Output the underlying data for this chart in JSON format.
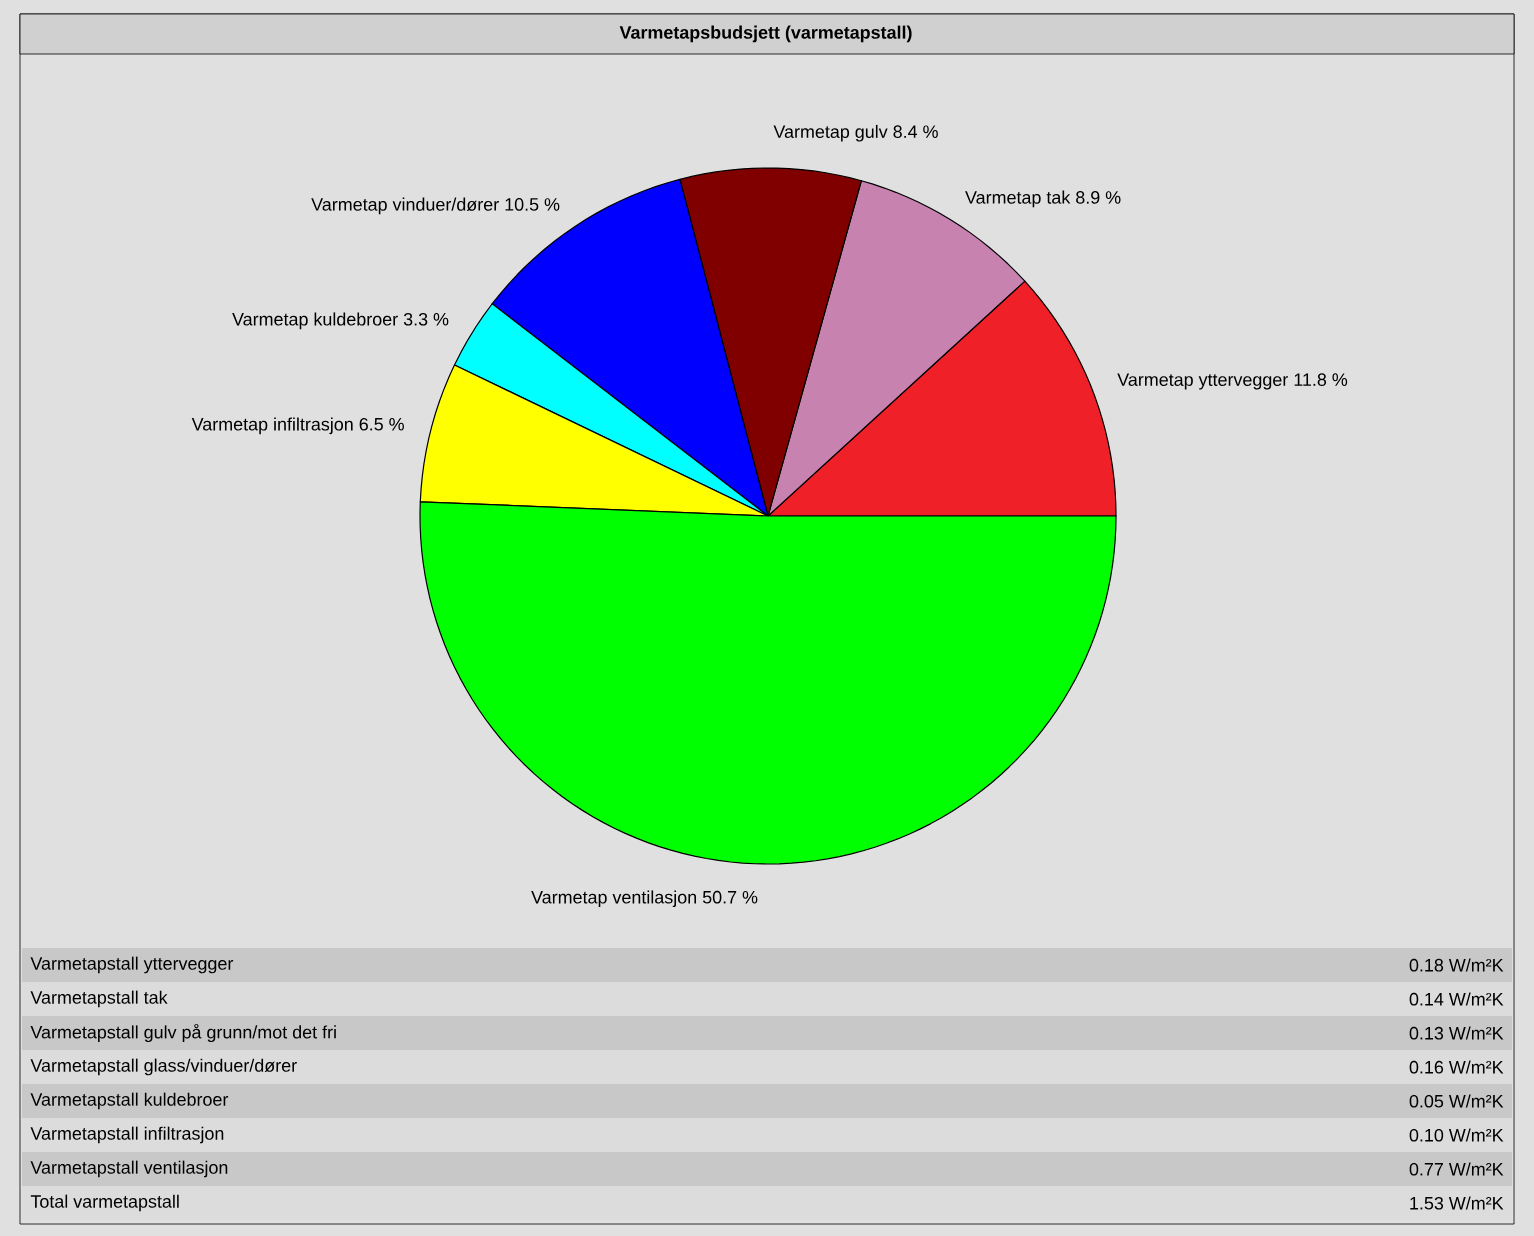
{
  "chart_data": {
    "type": "pie",
    "title": "Varmetapsbudsjett (varmetapstall)",
    "categories": [
      "Varmetap yttervegger",
      "Varmetap tak",
      "Varmetap gulv",
      "Varmetap vinduer/dører",
      "Varmetap kuldebroer",
      "Varmetap infiltrasjon",
      "Varmetap ventilasjon"
    ],
    "values": [
      11.8,
      8.9,
      8.4,
      10.5,
      3.3,
      6.5,
      50.7
    ],
    "value_labels": [
      "11.8 %",
      "8.9 %",
      "8.4 %",
      "10.5 %",
      "3.3 %",
      "6.5 %",
      "50.7 %"
    ],
    "colors": [
      "#f02028",
      "#c882b0",
      "#800000",
      "#0000ff",
      "#00ffff",
      "#ffff00",
      "#00ff00"
    ],
    "annotations": [
      "Varmetapstall yttervegger",
      "0.18 W/m²K",
      "Varmetapstall tak",
      "0.14 W/m²K",
      "Varmetapstall gulv på grunn/mot det fri",
      "0.13 W/m²K",
      "Varmetapstall glass/vinduer/dører",
      "0.16 W/m²K",
      "Varmetapstall kuldebroer",
      "0.05 W/m²K",
      "Varmetapstall infiltrasjon",
      "0.10 W/m²K",
      "Varmetapstall ventilasjon",
      "0.77 W/m²K",
      "Total varmetapstall",
      "1.53 W/m²K"
    ]
  }
}
